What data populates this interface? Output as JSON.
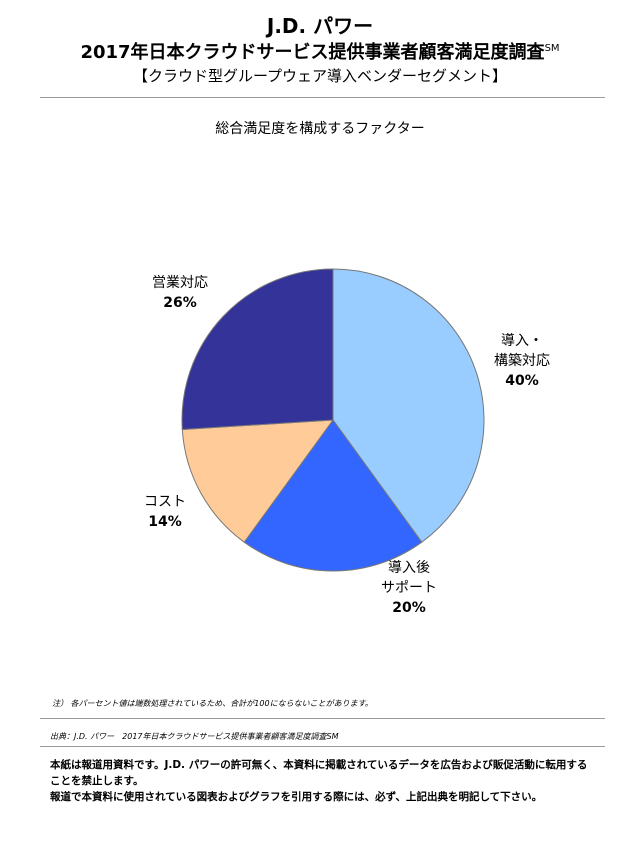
{
  "header": {
    "brand": "J.D. パワー",
    "title": "2017年日本クラウドサービス提供事業者顧客満足度調査",
    "title_mark": "SM",
    "segment": "【クラウド型グループウェア導入ベンダーセグメント】"
  },
  "chart_data": {
    "type": "pie",
    "title": "総合満足度を構成するファクター",
    "slices": [
      {
        "label": "導入・構築対応",
        "label_lines": [
          "導入・",
          "構築対応"
        ],
        "value": 40,
        "value_label": "40%",
        "color": "#99ccff"
      },
      {
        "label": "導入後サポート",
        "label_lines": [
          "導入後",
          "サポート"
        ],
        "value": 20,
        "value_label": "20%",
        "color": "#3366ff"
      },
      {
        "label": "コスト",
        "label_lines": [
          "コスト"
        ],
        "value": 14,
        "value_label": "14%",
        "color": "#ffcc99"
      },
      {
        "label": "営業対応",
        "label_lines": [
          "営業対応"
        ],
        "value": 26,
        "value_label": "26%",
        "color": "#333399"
      }
    ]
  },
  "footer": {
    "note": "注） 各パーセント値は端数処理されているため、合計が100にならないことがあります。",
    "source": "出典：J.D. パワー　2017年日本クラウドサービス提供事業者顧客満足度調査SM",
    "disclaimer_1": "本紙は報道用資料です。J.D. パワーの許可無く、本資料に掲載されているデータを広告および販促活動に転用することを禁止します。",
    "disclaimer_2": "報道で本資料に使用されている図表およびグラフを引用する際には、必ず、上記出典を明記して下さい。"
  }
}
